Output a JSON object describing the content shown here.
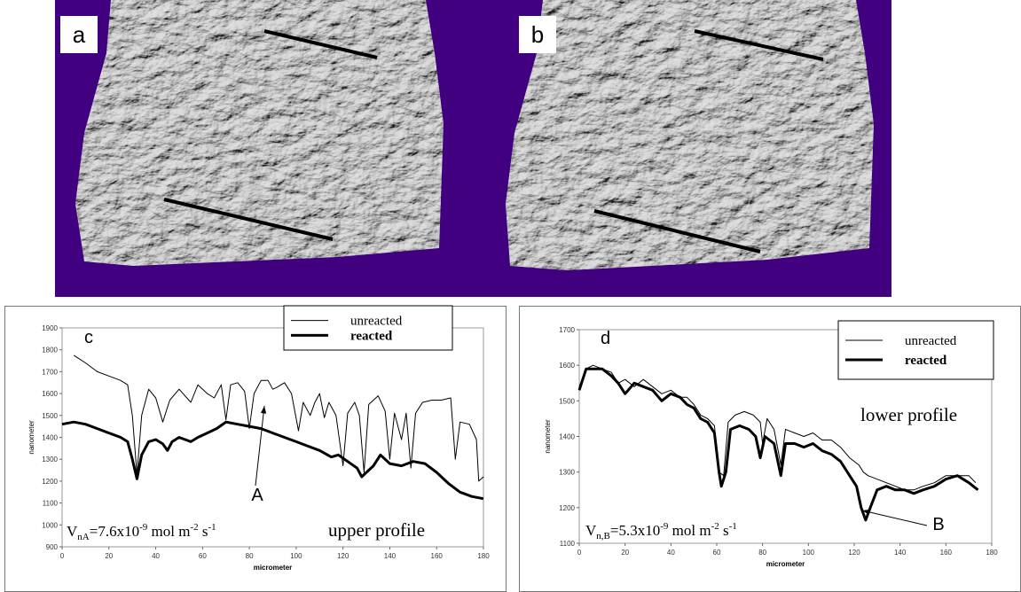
{
  "images": [
    {
      "label": "a"
    },
    {
      "label": "b"
    }
  ],
  "chart_data": [
    {
      "type": "line",
      "panel_label": "c",
      "x_label": "micrometer",
      "y_label": "nanometer",
      "xlim": [
        0,
        180
      ],
      "xticks": [
        0,
        20,
        40,
        60,
        80,
        100,
        120,
        140,
        160,
        180
      ],
      "ylim": [
        900,
        1900
      ],
      "yticks": [
        900,
        1000,
        1100,
        1200,
        1300,
        1400,
        1500,
        1600,
        1700,
        1800,
        1900
      ],
      "legend_loc": "upper right",
      "series": [
        {
          "name": "unreacted",
          "color": "#000000",
          "line_width": 1,
          "x": [
            5,
            10,
            15,
            20,
            25,
            28,
            30,
            32,
            34,
            37,
            40,
            43,
            46,
            50,
            55,
            58,
            62,
            65,
            68,
            70,
            72,
            75,
            78,
            80,
            82,
            85,
            88,
            90,
            92,
            95,
            98,
            101,
            103,
            106,
            108,
            110,
            112,
            114,
            117,
            120,
            122,
            125,
            127,
            129,
            131,
            135,
            138,
            140,
            142,
            145,
            147,
            149,
            151,
            154,
            158,
            162,
            166,
            168,
            170,
            174,
            177,
            178,
            180
          ],
          "values": [
            1775,
            1740,
            1700,
            1680,
            1660,
            1640,
            1500,
            1230,
            1500,
            1620,
            1580,
            1470,
            1570,
            1620,
            1560,
            1640,
            1600,
            1580,
            1640,
            1480,
            1640,
            1650,
            1610,
            1440,
            1600,
            1660,
            1660,
            1620,
            1630,
            1650,
            1600,
            1430,
            1560,
            1500,
            1560,
            1600,
            1490,
            1560,
            1500,
            1270,
            1510,
            1560,
            1500,
            1240,
            1550,
            1590,
            1520,
            1300,
            1510,
            1390,
            1510,
            1260,
            1510,
            1560,
            1570,
            1570,
            1580,
            1300,
            1470,
            1460,
            1390,
            1200,
            1220
          ]
        },
        {
          "name": "reacted",
          "color": "#000000",
          "line_width": 3,
          "x": [
            0,
            5,
            10,
            15,
            20,
            25,
            28,
            30,
            32,
            34,
            37,
            40,
            43,
            45,
            47,
            50,
            55,
            58,
            62,
            66,
            70,
            75,
            80,
            85,
            90,
            95,
            100,
            105,
            110,
            115,
            118,
            122,
            126,
            128,
            130,
            133,
            136,
            140,
            145,
            150,
            155,
            160,
            165,
            170,
            175,
            180
          ],
          "values": [
            1460,
            1470,
            1460,
            1440,
            1420,
            1400,
            1380,
            1300,
            1210,
            1320,
            1380,
            1390,
            1370,
            1340,
            1380,
            1400,
            1380,
            1400,
            1420,
            1440,
            1470,
            1460,
            1450,
            1440,
            1420,
            1400,
            1380,
            1360,
            1340,
            1310,
            1320,
            1290,
            1260,
            1220,
            1240,
            1270,
            1320,
            1280,
            1270,
            1290,
            1280,
            1240,
            1190,
            1150,
            1130,
            1120
          ]
        }
      ],
      "point_label": "A",
      "rate_label": [
        "V",
        "nA",
        "=7.6x10",
        "-9",
        " mol m",
        "-2",
        " s",
        "-1"
      ],
      "profile_label": "upper profile"
    },
    {
      "type": "line",
      "panel_label": "d",
      "x_label": "micrometer",
      "y_label": "nanometer",
      "xlim": [
        0,
        180
      ],
      "xticks": [
        0,
        20,
        40,
        60,
        80,
        100,
        120,
        140,
        160,
        180
      ],
      "ylim": [
        1100,
        1700
      ],
      "yticks": [
        1100,
        1200,
        1300,
        1400,
        1500,
        1600,
        1700
      ],
      "legend_loc": "upper right",
      "series": [
        {
          "name": "unreacted",
          "color": "#000000",
          "line_width": 1,
          "x": [
            0,
            3,
            6,
            10,
            14,
            17,
            20,
            24,
            28,
            32,
            36,
            40,
            44,
            47,
            50,
            53,
            56,
            59,
            61,
            63,
            65,
            68,
            72,
            76,
            79,
            80,
            82,
            85,
            88,
            90,
            94,
            98,
            102,
            106,
            110,
            114,
            118,
            122,
            124,
            126,
            130,
            134,
            138,
            142,
            146,
            150,
            155,
            160,
            165,
            170,
            173
          ],
          "values": [
            1540,
            1590,
            1600,
            1590,
            1580,
            1550,
            1560,
            1540,
            1560,
            1540,
            1520,
            1530,
            1510,
            1510,
            1490,
            1460,
            1450,
            1430,
            1300,
            1290,
            1440,
            1460,
            1470,
            1460,
            1440,
            1380,
            1450,
            1420,
            1320,
            1420,
            1410,
            1400,
            1410,
            1390,
            1390,
            1370,
            1340,
            1320,
            1300,
            1290,
            1280,
            1270,
            1260,
            1250,
            1250,
            1260,
            1270,
            1290,
            1290,
            1290,
            1270
          ]
        },
        {
          "name": "reacted",
          "color": "#000000",
          "line_width": 3,
          "x": [
            0,
            3,
            6,
            10,
            14,
            17,
            20,
            24,
            28,
            32,
            36,
            40,
            44,
            47,
            50,
            53,
            56,
            59,
            61,
            62,
            64,
            66,
            70,
            74,
            77,
            79,
            81,
            85,
            88,
            90,
            94,
            98,
            102,
            106,
            110,
            114,
            118,
            121,
            123,
            125,
            127,
            130,
            134,
            138,
            142,
            146,
            150,
            155,
            160,
            165,
            170,
            174
          ],
          "values": [
            1530,
            1590,
            1590,
            1590,
            1570,
            1550,
            1520,
            1550,
            1540,
            1530,
            1500,
            1520,
            1510,
            1490,
            1480,
            1450,
            1440,
            1410,
            1300,
            1260,
            1300,
            1420,
            1430,
            1420,
            1400,
            1340,
            1400,
            1380,
            1290,
            1380,
            1380,
            1370,
            1380,
            1360,
            1350,
            1330,
            1290,
            1260,
            1200,
            1165,
            1200,
            1250,
            1260,
            1250,
            1250,
            1240,
            1250,
            1260,
            1280,
            1290,
            1270,
            1250
          ]
        }
      ],
      "point_label": "B",
      "rate_label": [
        "V",
        "n,B",
        "=5.3x10",
        "-9",
        " mol m",
        "-2",
        " s",
        "-1"
      ],
      "profile_label": "lower profile"
    }
  ]
}
